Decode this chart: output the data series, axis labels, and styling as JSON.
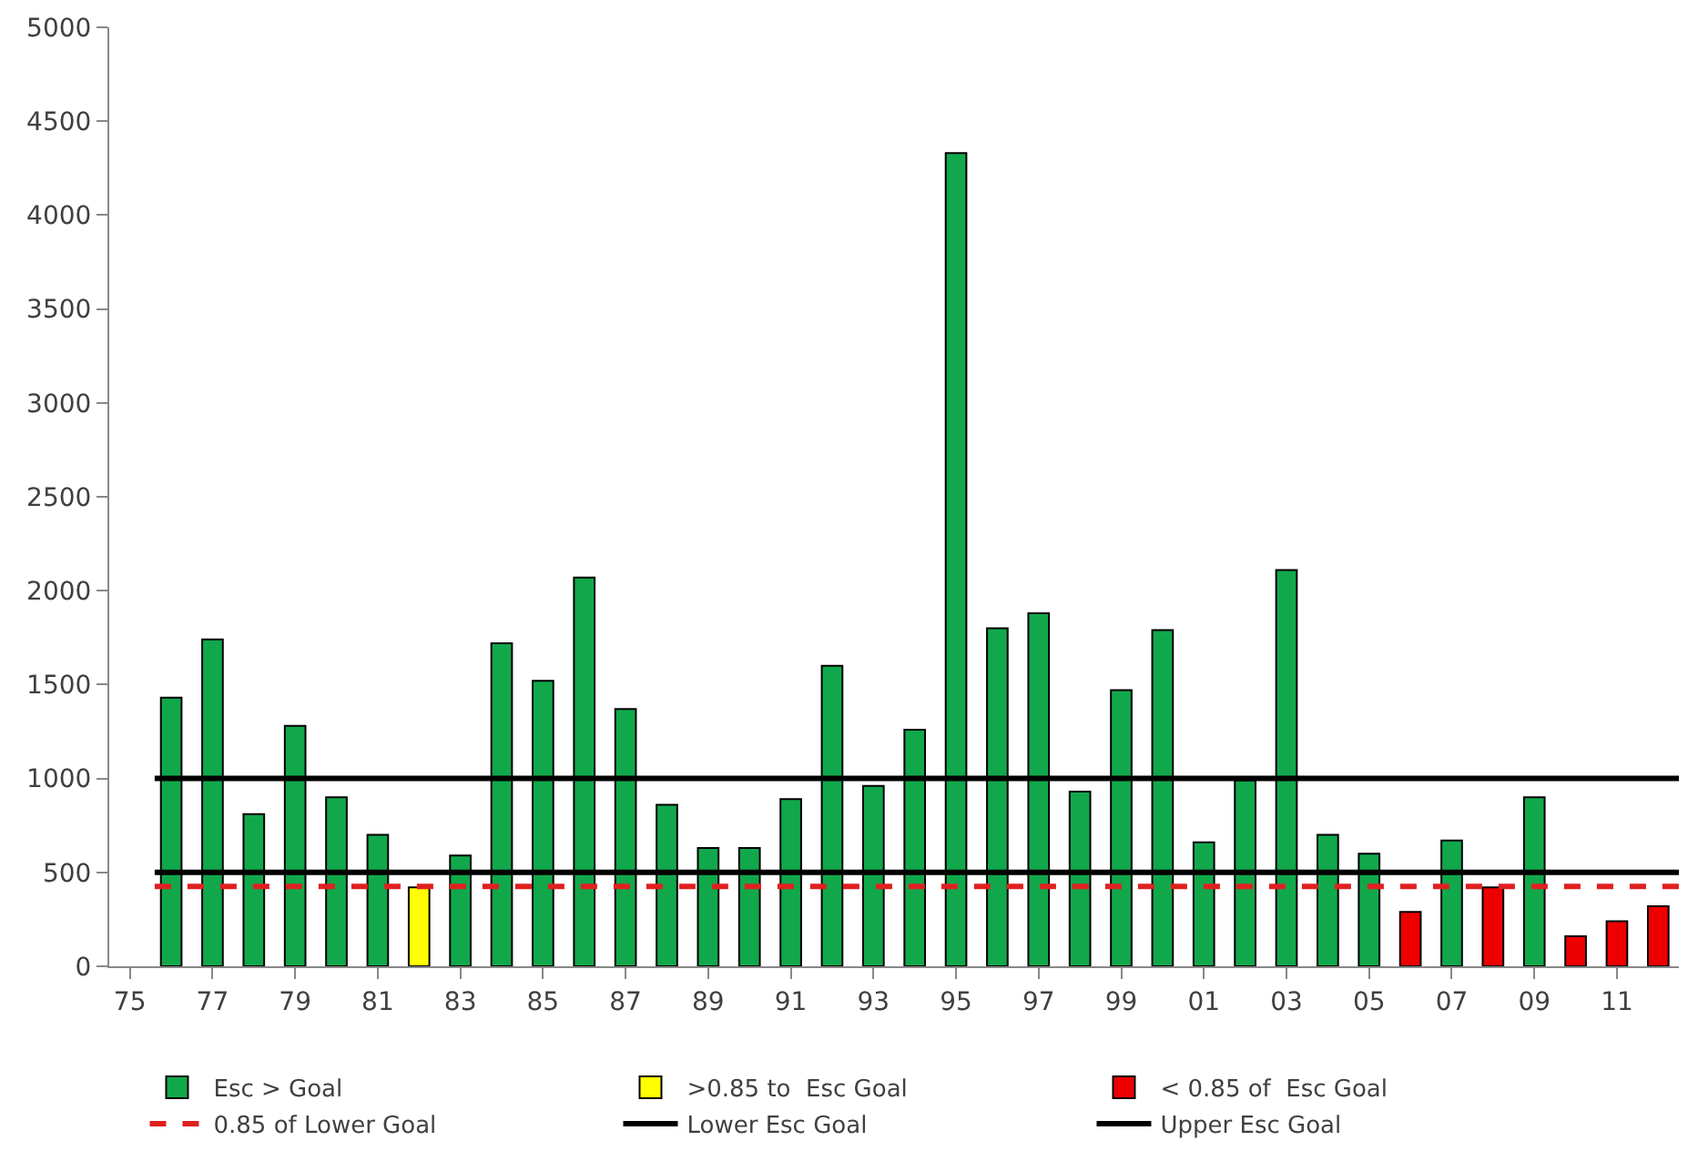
{
  "chart_data": {
    "type": "bar",
    "categories": [
      "75",
      null,
      "77",
      null,
      "79",
      null,
      "81",
      null,
      "83",
      null,
      "85",
      null,
      "87",
      null,
      "89",
      null,
      "91",
      null,
      "93",
      null,
      "95",
      null,
      "97",
      null,
      "99",
      null,
      "01",
      null,
      "03",
      null,
      "05",
      null,
      "07",
      null,
      "09",
      null,
      "11",
      null
    ],
    "series": [
      {
        "name": "Esc > Goal",
        "color": "#11a84c",
        "values": [
          null,
          1430,
          1740,
          810,
          1280,
          900,
          700,
          null,
          590,
          1720,
          1520,
          2070,
          1370,
          860,
          630,
          630,
          890,
          1600,
          960,
          1260,
          4330,
          1800,
          1880,
          930,
          1470,
          1790,
          660,
          990,
          2110,
          700,
          600,
          null,
          670,
          null,
          900,
          null,
          null,
          null
        ]
      },
      {
        "name": ">0.85 to  Esc Goal",
        "color": "#ffff00",
        "values": [
          null,
          null,
          null,
          null,
          null,
          null,
          null,
          420,
          null,
          null,
          null,
          null,
          null,
          null,
          null,
          null,
          null,
          null,
          null,
          null,
          null,
          null,
          null,
          null,
          null,
          null,
          null,
          null,
          null,
          null,
          null,
          null,
          null,
          null,
          null,
          null,
          null,
          null
        ]
      },
      {
        "name": "< 0.85 of  Esc Goal",
        "color": "#ee0000",
        "values": [
          null,
          null,
          null,
          null,
          null,
          null,
          null,
          null,
          null,
          null,
          null,
          null,
          null,
          null,
          null,
          null,
          null,
          null,
          null,
          null,
          null,
          null,
          null,
          null,
          null,
          null,
          null,
          null,
          null,
          null,
          null,
          290,
          null,
          420,
          null,
          160,
          240,
          320
        ]
      }
    ],
    "ref_lines": [
      {
        "axis": "y",
        "value": 425,
        "label": "0.85 of Lower Goal",
        "color": "#e02020",
        "line_style": "dashed"
      },
      {
        "axis": "y",
        "value": 500,
        "label": "Lower Esc Goal",
        "color": "#000000",
        "line_style": "solid"
      },
      {
        "axis": "y",
        "value": 1000,
        "label": "Upper Esc Goal",
        "color": "#000000",
        "line_style": "solid"
      }
    ],
    "ylim": [
      0,
      5000
    ],
    "yticks": [
      0,
      500,
      1000,
      1500,
      2000,
      2500,
      3000,
      3500,
      4000,
      4500,
      5000
    ],
    "legend": "bottom"
  }
}
